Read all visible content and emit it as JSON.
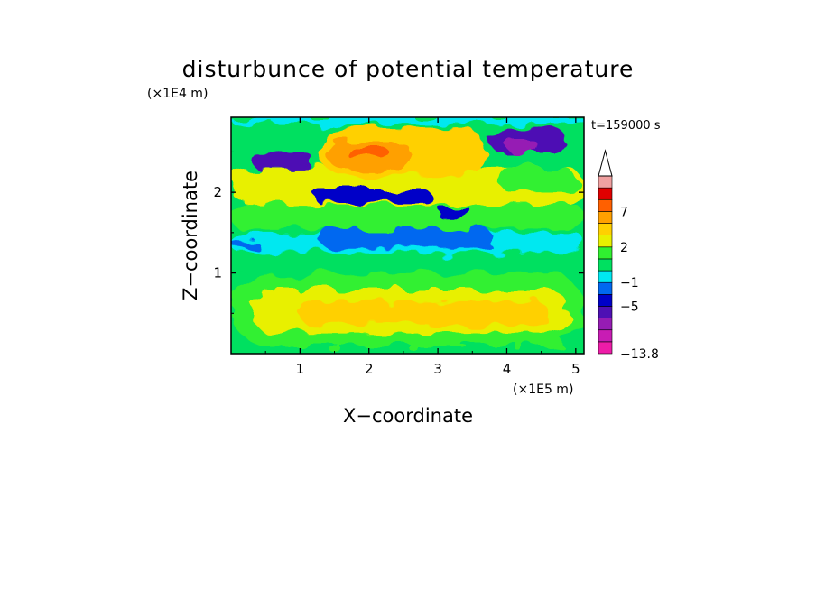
{
  "chart_data": {
    "type": "heatmap",
    "title": "disturbunce of potential temperature",
    "xlabel": "X−coordinate",
    "ylabel": "Z−coordinate",
    "x_unit": "(×1E5 m)",
    "y_unit": "(×1E4 m)",
    "time_label": "t=159000 s",
    "xlim": [
      0,
      5.12
    ],
    "ylim": [
      0,
      2.93
    ],
    "x_ticks": [
      {
        "value": 1,
        "label": "1"
      },
      {
        "value": 2,
        "label": "2"
      },
      {
        "value": 3,
        "label": "3"
      },
      {
        "value": 4,
        "label": "4"
      },
      {
        "value": 5,
        "label": "5"
      }
    ],
    "y_ticks": [
      {
        "value": 1,
        "label": "1"
      },
      {
        "value": 2,
        "label": "2"
      }
    ],
    "colorbar": {
      "levels": [
        -13.8,
        -11,
        -9,
        -7,
        -5,
        -3,
        -1,
        0,
        1,
        2,
        3,
        5,
        7,
        9,
        11
      ],
      "tick_labels": [
        {
          "value": -13.8,
          "label": "−13.8"
        },
        {
          "value": -5,
          "label": "−5"
        },
        {
          "value": -1,
          "label": "−1"
        },
        {
          "value": 2,
          "label": "2"
        },
        {
          "value": 7,
          "label": "7"
        }
      ],
      "colors": [
        "#ee1ca8",
        "#c81cb4",
        "#961cb4",
        "#4e10b4",
        "#0000c8",
        "#0068f0",
        "#00e8f0",
        "#00e060",
        "#30f030",
        "#e8f000",
        "#ffd000",
        "#ffa000",
        "#ff6000",
        "#e00000",
        "#f0a0a0"
      ],
      "extend": "max"
    },
    "regions": [
      {
        "x": 0,
        "y": 1.5,
        "w": 5.12,
        "h": 1.43,
        "v": 0.5
      },
      {
        "x": 0,
        "y": 0,
        "w": 5.12,
        "h": 0.1,
        "v": 0.5
      },
      {
        "x": 0,
        "y": 0.1,
        "w": 5.12,
        "h": 0.9,
        "v": 1.5
      },
      {
        "x": 0,
        "y": 1.0,
        "w": 5.12,
        "h": 0.25,
        "v": 0.5
      },
      {
        "x": 0,
        "y": 1.25,
        "w": 5.12,
        "h": 0.25,
        "v": -0.5
      },
      {
        "x": 0.3,
        "y": 0.25,
        "w": 4.6,
        "h": 0.55,
        "v": 2.5
      },
      {
        "x": 1.0,
        "y": 0.35,
        "w": 3.6,
        "h": 0.3,
        "v": 4
      },
      {
        "x": 0,
        "y": 1.3,
        "w": 0.4,
        "h": 0.1,
        "v": -2
      },
      {
        "x": 1.3,
        "y": 1.3,
        "w": 2.5,
        "h": 0.25,
        "v": -2
      },
      {
        "x": 0,
        "y": 1.55,
        "w": 5.12,
        "h": 0.3,
        "v": 1.5
      },
      {
        "x": 0,
        "y": 1.85,
        "w": 5.12,
        "h": 0.45,
        "v": 2.5
      },
      {
        "x": 1.2,
        "y": 1.88,
        "w": 1.7,
        "h": 0.15,
        "v": -4
      },
      {
        "x": 3.0,
        "y": 1.68,
        "w": 0.5,
        "h": 0.12,
        "v": -4
      },
      {
        "x": 1.3,
        "y": 2.2,
        "w": 2.4,
        "h": 0.6,
        "v": 4
      },
      {
        "x": 1.4,
        "y": 2.3,
        "w": 1.2,
        "h": 0.35,
        "v": 6
      },
      {
        "x": 1.7,
        "y": 2.4,
        "w": 0.6,
        "h": 0.15,
        "v": 8
      },
      {
        "x": 0.3,
        "y": 2.3,
        "w": 0.9,
        "h": 0.18,
        "v": -5.5
      },
      {
        "x": 3.75,
        "y": 2.5,
        "w": 1.1,
        "h": 0.3,
        "v": -5.5
      },
      {
        "x": 4.0,
        "y": 2.5,
        "w": 0.45,
        "h": 0.15,
        "v": -9
      },
      {
        "x": 3.9,
        "y": 2.0,
        "w": 1.1,
        "h": 0.3,
        "v": 1.5
      },
      {
        "x": 0,
        "y": 2.85,
        "w": 5.12,
        "h": 0.08,
        "v": -0.5
      }
    ]
  }
}
